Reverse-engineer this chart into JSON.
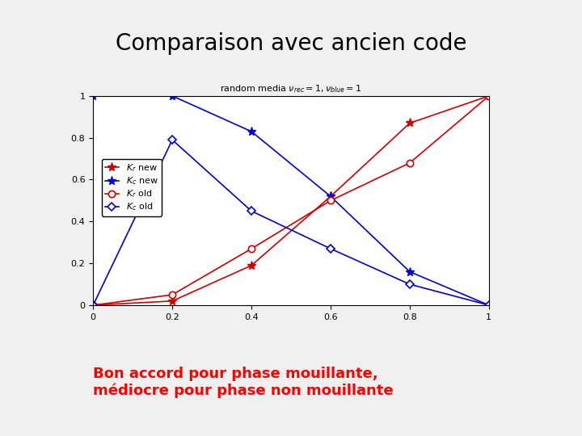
{
  "title": "Comparaison avec ancien code",
  "title_bg": "#2db84b",
  "title_color": "black",
  "subtitle": "random media $\\nu_{rec} = 1, \\nu_{blue} = 1$",
  "footer_line1": "Bon accord pour phase mouillante,",
  "footer_line2": "médiocre pour phase non mouillante",
  "footer_color": "red",
  "background_color": "#f0f0f0",
  "plot_bg": "white",
  "x": [
    0.0,
    0.2,
    0.4,
    0.6,
    0.8,
    1.0
  ],
  "Kr_new": [
    0.0,
    0.02,
    0.19,
    0.52,
    0.87,
    1.0
  ],
  "Kc_new": [
    1.0,
    1.0,
    0.83,
    0.52,
    0.16,
    0.0
  ],
  "Kr_old": [
    0.0,
    0.05,
    0.27,
    0.5,
    0.68,
    1.0
  ],
  "Kc_old": [
    0.0,
    0.79,
    0.45,
    0.27,
    0.1,
    0.0
  ],
  "xlim": [
    0.0,
    1.0
  ],
  "ylim": [
    0.0,
    1.0
  ],
  "xticks": [
    0,
    0.2,
    0.4,
    0.6,
    0.8,
    1
  ],
  "yticks": [
    0,
    0.2,
    0.4,
    0.6,
    0.8,
    1
  ],
  "red_new_color": "#cc0000",
  "blue_new_color": "#0000cc",
  "red_old_color": "#cc0000",
  "blue_old_color": "#0000cc",
  "title_fontsize": 20,
  "footer_fontsize": 13,
  "subtitle_fontsize": 8,
  "tick_fontsize": 8,
  "legend_fontsize": 8
}
